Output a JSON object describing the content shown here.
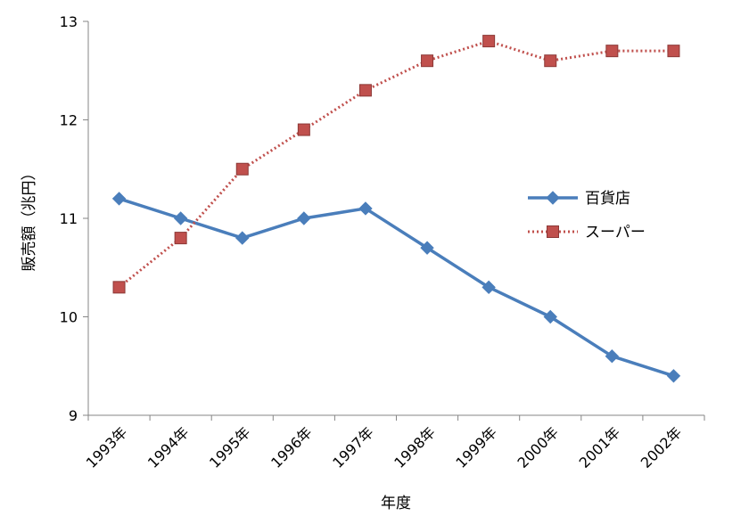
{
  "chart_data": {
    "type": "line",
    "title": "",
    "xlabel": "年度",
    "ylabel": "販売額（兆円）",
    "categories": [
      "1993年",
      "1994年",
      "1995年",
      "1996年",
      "1997年",
      "1998年",
      "1999年",
      "2000年",
      "2001年",
      "2002年"
    ],
    "ylim": [
      9,
      13
    ],
    "yticks": [
      "9",
      "10",
      "11",
      "12",
      "13"
    ],
    "grid": false,
    "legend_position": "right",
    "series": [
      {
        "name": "百貨店",
        "values": [
          11.2,
          11.0,
          10.8,
          11.0,
          11.1,
          10.7,
          10.3,
          10.0,
          9.6,
          9.4
        ],
        "color": "#4a7ebb",
        "line_style": "solid",
        "marker": "diamond"
      },
      {
        "name": "スーパー",
        "values": [
          10.3,
          10.8,
          11.5,
          11.9,
          12.3,
          12.6,
          12.8,
          12.6,
          12.7,
          12.7
        ],
        "color": "#c0504d",
        "line_style": "dotted",
        "marker": "square"
      }
    ]
  }
}
